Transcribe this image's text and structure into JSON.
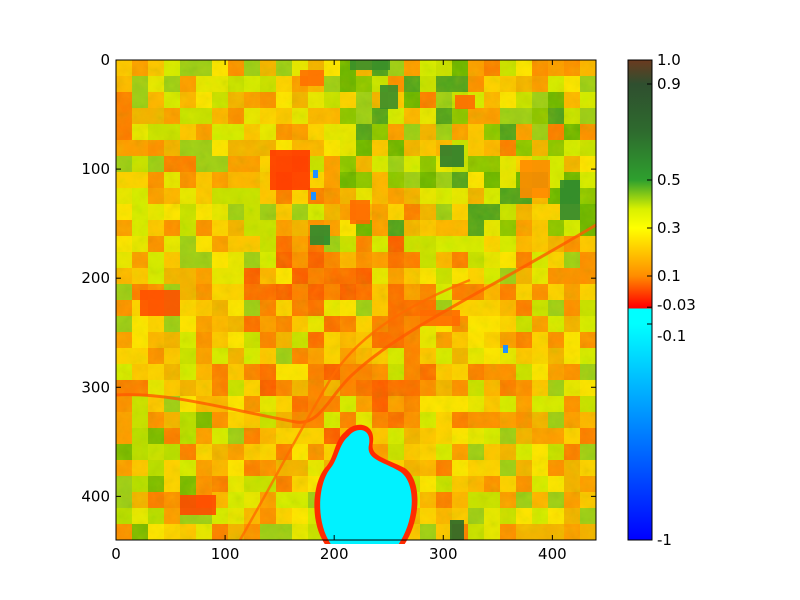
{
  "chart_data": [
    {
      "type": "heatmap",
      "title": "",
      "xlabel": "",
      "ylabel": "",
      "image_size": [
        440,
        440
      ],
      "xlim": [
        0,
        440
      ],
      "ylim": [
        440,
        0
      ],
      "x_ticks": [
        0,
        100,
        200,
        300,
        400
      ],
      "y_ticks": [
        0,
        100,
        200,
        300,
        400
      ],
      "x_tick_labels": [
        "0",
        "100",
        "200",
        "300",
        "400"
      ],
      "y_tick_labels": [
        "0",
        "100",
        "200",
        "300",
        "400"
      ],
      "features": [
        {
          "kind": "water-body",
          "value_range": [
            -1,
            -0.1
          ],
          "center": [
            228,
            385
          ],
          "extent": [
            90,
            100
          ],
          "color": "#00ffff"
        },
        {
          "kind": "urban-area",
          "value_range": [
            0.0,
            0.1
          ],
          "center": [
            200,
            240
          ],
          "color": "#ff6a00"
        },
        {
          "kind": "dense-vegetation",
          "value_range": [
            0.5,
            0.7
          ],
          "center": [
            330,
            90
          ],
          "color": "#2e8b2e"
        }
      ]
    },
    {
      "type": "colorbar",
      "range": [
        -1,
        1.0
      ],
      "ticks": [
        1.0,
        0.9,
        0.5,
        0.3,
        0.1,
        -0.03,
        -0.1,
        -1
      ],
      "tick_labels": [
        "1.0",
        "0.9",
        "0.5",
        "0.3",
        "0.1",
        "-0.03",
        "-0.1",
        "-1"
      ],
      "color_stops": [
        {
          "value": 1.0,
          "color": "#6b3a1f"
        },
        {
          "value": 0.9,
          "color": "#2f4f2f"
        },
        {
          "value": 0.7,
          "color": "#2e6b2e"
        },
        {
          "value": 0.5,
          "color": "#2ea02e"
        },
        {
          "value": 0.38,
          "color": "#d8f000"
        },
        {
          "value": 0.3,
          "color": "#ffff00"
        },
        {
          "value": 0.1,
          "color": "#ff8c00"
        },
        {
          "value": -0.03,
          "color": "#ff0000"
        },
        {
          "value": -0.1,
          "color": "#00ffff"
        },
        {
          "value": -1,
          "color": "#0000ff"
        }
      ]
    }
  ]
}
